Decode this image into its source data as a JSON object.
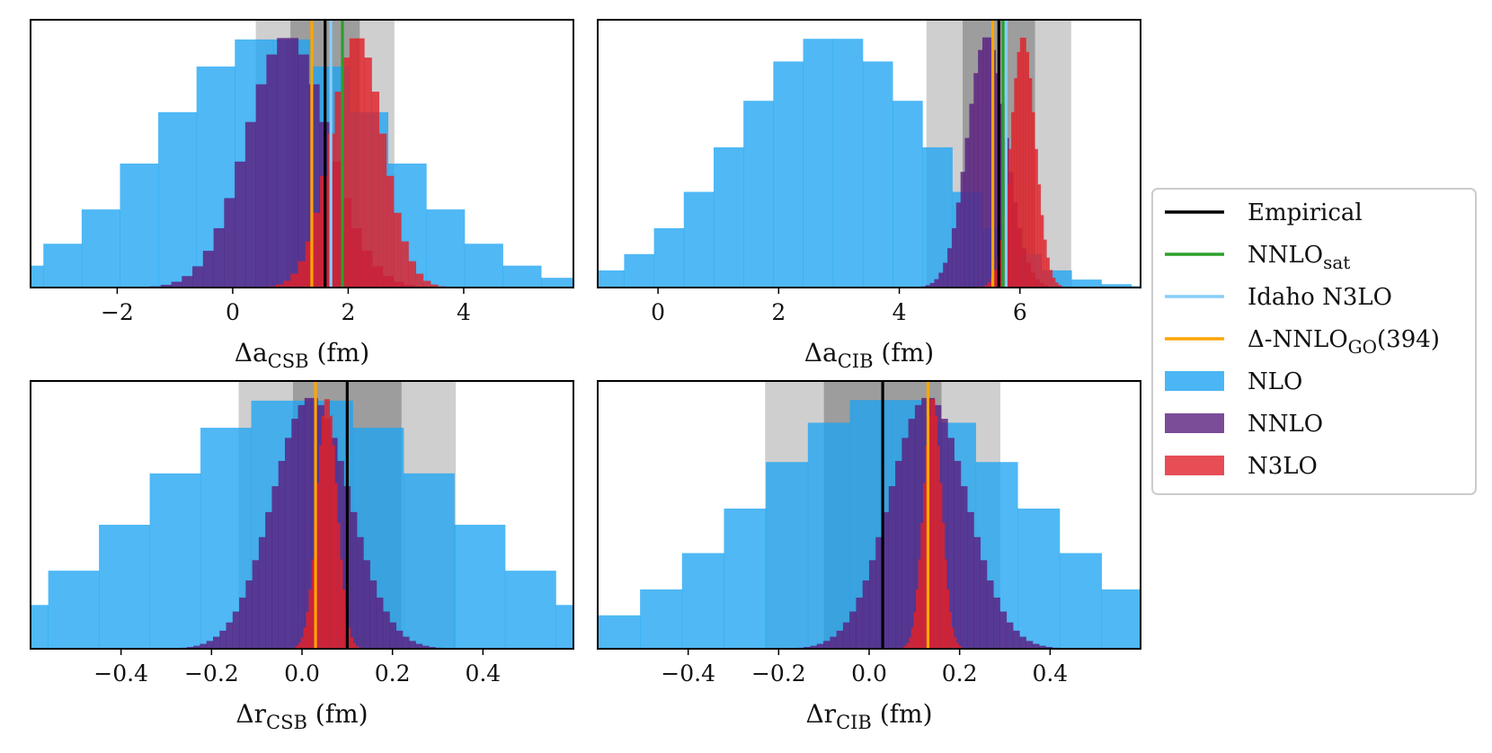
{
  "colors": {
    "empirical": "#000000",
    "nnlo_sat": "#2ca02c",
    "idaho_n3lo": "#87cefa",
    "delta_nnlo": "#ffa500",
    "nlo": "#1ea4f2",
    "nnlo": "#5a2080",
    "n3lo": "#e0212a",
    "band_light": "#bfbfbf",
    "band_dark": "#8c8c8c"
  },
  "legend": {
    "items": [
      {
        "key": "empirical",
        "label": "Empirical",
        "kind": "line"
      },
      {
        "key": "nnlo_sat",
        "label": "NNLO",
        "sub": "sat",
        "tail": "",
        "kind": "line"
      },
      {
        "key": "idaho_n3lo",
        "label": "Idaho N3LO",
        "kind": "line"
      },
      {
        "key": "delta_nnlo",
        "label": "Δ-NNLO",
        "sub": "GO",
        "tail": "(394)",
        "kind": "line"
      },
      {
        "key": "nlo",
        "label": "NLO",
        "kind": "patch"
      },
      {
        "key": "nnlo",
        "label": "NNLO",
        "kind": "patch"
      },
      {
        "key": "n3lo",
        "label": "N3LO",
        "kind": "patch"
      }
    ]
  },
  "chart_data": [
    {
      "type": "histogram",
      "id": "a_csb",
      "xlabel": "Δa",
      "xlabel_sub": "CSB",
      "xlabel_unit": " (fm)",
      "xlim": [
        -3.5,
        5.9
      ],
      "xticks": [
        -2,
        0,
        2,
        4
      ],
      "xtick_labels": [
        "−2",
        "0",
        "2",
        "4"
      ],
      "bands_light": [
        0.4,
        2.8
      ],
      "bands_dark": [
        1.0,
        2.2
      ],
      "vlines": {
        "empirical": 1.6,
        "nnlo_sat": 1.9,
        "idaho_n3lo": 1.7,
        "delta_nnlo": 1.37
      },
      "series": [
        {
          "name": "NLO",
          "center": 0.7,
          "sigma": 1.95,
          "bins": 20,
          "alpha": 0.78
        },
        {
          "name": "NNLO",
          "center": 0.95,
          "sigma": 0.7,
          "bins": 26,
          "alpha": 0.82
        },
        {
          "name": "N3LO",
          "center": 2.15,
          "sigma": 0.45,
          "bins": 24,
          "alpha": 0.82
        }
      ]
    },
    {
      "type": "histogram",
      "id": "a_cib",
      "xlabel": "Δa",
      "xlabel_sub": "CIB",
      "xlabel_unit": " (fm)",
      "xlim": [
        -1.0,
        8.0
      ],
      "xticks": [
        0,
        2,
        4,
        6
      ],
      "xtick_labels": [
        "0",
        "2",
        "4",
        "6"
      ],
      "bands_light": [
        4.45,
        6.85
      ],
      "bands_dark": [
        5.05,
        6.25
      ],
      "vlines": {
        "empirical": 5.65,
        "nnlo_sat": 5.72,
        "idaho_n3lo": 5.77,
        "delta_nnlo": 5.55
      },
      "series": [
        {
          "name": "NLO",
          "center": 2.9,
          "sigma": 1.6,
          "bins": 22,
          "alpha": 0.78
        },
        {
          "name": "NNLO",
          "center": 5.45,
          "sigma": 0.32,
          "bins": 30,
          "alpha": 0.82
        },
        {
          "name": "N3LO",
          "center": 6.05,
          "sigma": 0.2,
          "bins": 28,
          "alpha": 0.82
        }
      ]
    },
    {
      "type": "histogram",
      "id": "r_csb",
      "xlabel": "Δr",
      "xlabel_sub": "CSB",
      "xlabel_unit": " (fm)",
      "xlim": [
        -0.6,
        0.6
      ],
      "xticks": [
        -0.4,
        -0.2,
        0.0,
        0.2,
        0.4
      ],
      "xtick_labels": [
        "−0.4",
        "−0.2",
        "0.0",
        "0.2",
        "0.4"
      ],
      "bands_light": [
        -0.14,
        0.34
      ],
      "bands_dark": [
        -0.02,
        0.22
      ],
      "vlines": {
        "empirical": 0.1,
        "delta_nnlo": 0.03
      },
      "series": [
        {
          "name": "NLO",
          "center": 0.0,
          "sigma": 0.33,
          "bins": 20,
          "alpha": 0.78
        },
        {
          "name": "NNLO",
          "center": 0.02,
          "sigma": 0.085,
          "bins": 40,
          "alpha": 0.82
        },
        {
          "name": "N3LO",
          "center": 0.055,
          "sigma": 0.022,
          "bins": 26,
          "alpha": 0.82
        }
      ]
    },
    {
      "type": "histogram",
      "id": "r_cib",
      "xlabel": "Δr",
      "xlabel_sub": "CIB",
      "xlabel_unit": " (fm)",
      "xlim": [
        -0.6,
        0.6
      ],
      "xticks": [
        -0.4,
        -0.2,
        0.0,
        0.2,
        0.4
      ],
      "xtick_labels": [
        "−0.4",
        "−0.2",
        "0.0",
        "0.2",
        "0.4"
      ],
      "bands_light": [
        -0.23,
        0.29
      ],
      "bands_dark": [
        -0.1,
        0.16
      ],
      "vlines": {
        "empirical": 0.03,
        "delta_nnlo": 0.13
      },
      "series": [
        {
          "name": "NLO",
          "center": 0.05,
          "sigma": 0.3,
          "bins": 22,
          "alpha": 0.78
        },
        {
          "name": "NNLO",
          "center": 0.13,
          "sigma": 0.085,
          "bins": 40,
          "alpha": 0.82
        },
        {
          "name": "N3LO",
          "center": 0.14,
          "sigma": 0.02,
          "bins": 26,
          "alpha": 0.82
        }
      ]
    }
  ]
}
